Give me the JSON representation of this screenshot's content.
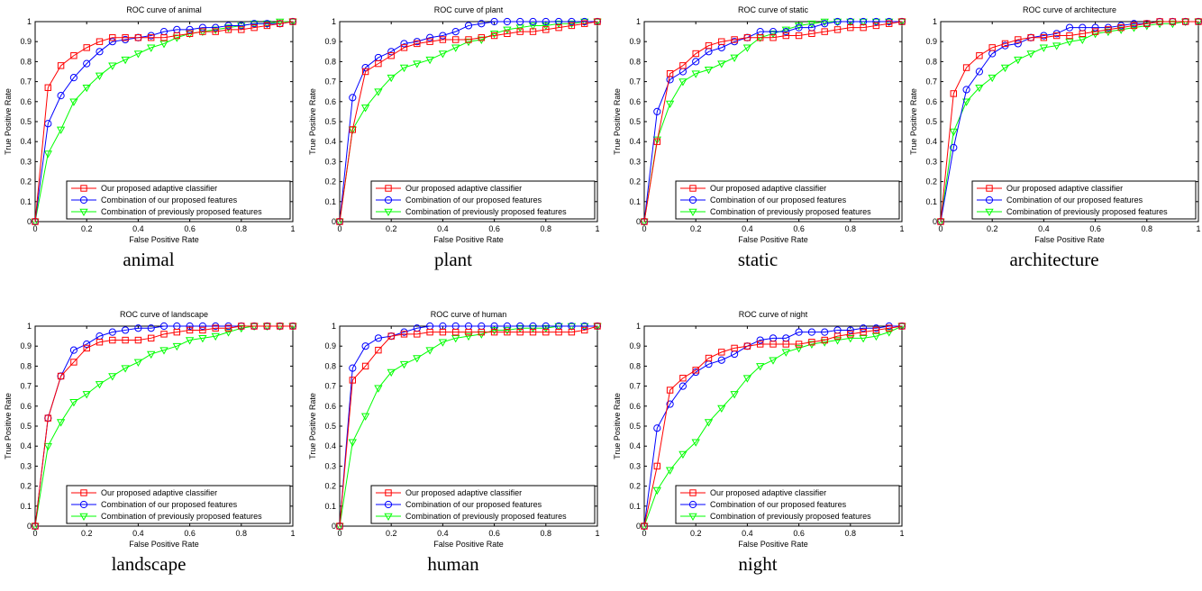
{
  "legend_labels": [
    "Our proposed adaptive classifier",
    "Combination of our proposed features",
    "Combination of previously proposed features"
  ],
  "series_colors": [
    "#ff0000",
    "#0000ff",
    "#00ff00"
  ],
  "series_markers": [
    "square",
    "circle",
    "triangle-down"
  ],
  "chart_data": [
    {
      "type": "line",
      "title": "ROC curve of animal",
      "caption": "animal",
      "xlabel": "False Positive Rate",
      "ylabel": "True Positive Rate",
      "xlim": [
        0,
        1
      ],
      "ylim": [
        0,
        1
      ],
      "xticks": [
        "0",
        "0.2",
        "0.4",
        "0.6",
        "0.8",
        "1"
      ],
      "yticks": [
        "0",
        "0.1",
        "0.2",
        "0.3",
        "0.4",
        "0.5",
        "0.6",
        "0.7",
        "0.8",
        "0.9",
        "1"
      ],
      "x": [
        0,
        0.05,
        0.1,
        0.15,
        0.2,
        0.25,
        0.3,
        0.35,
        0.4,
        0.45,
        0.5,
        0.55,
        0.6,
        0.65,
        0.7,
        0.75,
        0.8,
        0.85,
        0.9,
        0.95,
        1
      ],
      "series": [
        {
          "name": "Our proposed adaptive classifier",
          "values": [
            0,
            0.67,
            0.78,
            0.83,
            0.87,
            0.9,
            0.92,
            0.92,
            0.92,
            0.92,
            0.92,
            0.93,
            0.94,
            0.95,
            0.95,
            0.96,
            0.96,
            0.97,
            0.98,
            0.99,
            1
          ]
        },
        {
          "name": "Combination of our proposed features",
          "values": [
            0,
            0.49,
            0.63,
            0.72,
            0.79,
            0.85,
            0.9,
            0.91,
            0.92,
            0.93,
            0.95,
            0.96,
            0.96,
            0.97,
            0.97,
            0.98,
            0.98,
            0.99,
            0.99,
            0.99,
            1
          ]
        },
        {
          "name": "Combination of previously proposed features",
          "values": [
            0,
            0.34,
            0.46,
            0.6,
            0.67,
            0.73,
            0.78,
            0.81,
            0.84,
            0.87,
            0.89,
            0.92,
            0.94,
            0.95,
            0.96,
            0.97,
            0.98,
            0.99,
            0.99,
            1,
            1
          ]
        }
      ]
    },
    {
      "type": "line",
      "title": "ROC curve of plant",
      "caption": "plant",
      "xlabel": "False Positive Rate",
      "ylabel": "True Positive Rate",
      "xlim": [
        0,
        1
      ],
      "ylim": [
        0,
        1
      ],
      "xticks": [
        "0",
        "0.2",
        "0.4",
        "0.6",
        "0.8",
        "1"
      ],
      "yticks": [
        "0",
        "0.1",
        "0.2",
        "0.3",
        "0.4",
        "0.5",
        "0.6",
        "0.7",
        "0.8",
        "0.9",
        "1"
      ],
      "x": [
        0,
        0.05,
        0.1,
        0.15,
        0.2,
        0.25,
        0.3,
        0.35,
        0.4,
        0.45,
        0.5,
        0.55,
        0.6,
        0.65,
        0.7,
        0.75,
        0.8,
        0.85,
        0.9,
        0.95,
        1
      ],
      "series": [
        {
          "name": "Our proposed adaptive classifier",
          "values": [
            0,
            0.46,
            0.75,
            0.79,
            0.83,
            0.87,
            0.89,
            0.9,
            0.91,
            0.91,
            0.91,
            0.92,
            0.93,
            0.94,
            0.95,
            0.95,
            0.96,
            0.97,
            0.98,
            0.99,
            1
          ]
        },
        {
          "name": "Combination of our proposed features",
          "values": [
            0,
            0.62,
            0.77,
            0.82,
            0.85,
            0.89,
            0.9,
            0.92,
            0.93,
            0.95,
            0.98,
            0.99,
            1,
            1,
            1,
            1,
            1,
            1,
            1,
            1,
            1
          ]
        },
        {
          "name": "Combination of previously proposed features",
          "values": [
            0,
            0.46,
            0.57,
            0.65,
            0.72,
            0.77,
            0.79,
            0.81,
            0.84,
            0.87,
            0.9,
            0.91,
            0.94,
            0.96,
            0.97,
            0.98,
            0.98,
            0.99,
            0.99,
            1,
            1
          ]
        }
      ]
    },
    {
      "type": "line",
      "title": "ROC curve of static",
      "caption": "static",
      "xlabel": "False Positive Rate",
      "ylabel": "True Positive Rate",
      "xlim": [
        0,
        1
      ],
      "ylim": [
        0,
        1
      ],
      "xticks": [
        "0",
        "0.2",
        "0.4",
        "0.6",
        "0.8",
        "1"
      ],
      "yticks": [
        "0",
        "0.1",
        "0.2",
        "0.3",
        "0.4",
        "0.5",
        "0.6",
        "0.7",
        "0.8",
        "0.9",
        "1"
      ],
      "x": [
        0,
        0.05,
        0.1,
        0.15,
        0.2,
        0.25,
        0.3,
        0.35,
        0.4,
        0.45,
        0.5,
        0.55,
        0.6,
        0.65,
        0.7,
        0.75,
        0.8,
        0.85,
        0.9,
        0.95,
        1
      ],
      "series": [
        {
          "name": "Our proposed adaptive classifier",
          "values": [
            0,
            0.4,
            0.74,
            0.78,
            0.84,
            0.88,
            0.9,
            0.91,
            0.92,
            0.92,
            0.92,
            0.93,
            0.93,
            0.94,
            0.95,
            0.96,
            0.97,
            0.97,
            0.98,
            0.99,
            1
          ]
        },
        {
          "name": "Combination of our proposed features",
          "values": [
            0,
            0.55,
            0.71,
            0.75,
            0.8,
            0.85,
            0.87,
            0.9,
            0.92,
            0.95,
            0.95,
            0.95,
            0.97,
            0.97,
            0.99,
            1,
            1,
            1,
            1,
            1,
            1
          ]
        },
        {
          "name": "Combination of previously proposed features",
          "values": [
            0,
            0.41,
            0.59,
            0.7,
            0.74,
            0.76,
            0.79,
            0.82,
            0.87,
            0.92,
            0.94,
            0.96,
            0.98,
            0.99,
            1,
            1,
            1,
            1,
            1,
            1,
            1
          ]
        }
      ]
    },
    {
      "type": "line",
      "title": "ROC curve of architecture",
      "caption": "architecture",
      "xlabel": "False Positive Rate",
      "ylabel": "True Positive Rate",
      "xlim": [
        0,
        1
      ],
      "ylim": [
        0,
        1
      ],
      "xticks": [
        "0",
        "0.2",
        "0.4",
        "0.6",
        "0.8",
        "1"
      ],
      "yticks": [
        "0",
        "0.1",
        "0.2",
        "0.3",
        "0.4",
        "0.5",
        "0.6",
        "0.7",
        "0.8",
        "0.9",
        "1"
      ],
      "x": [
        0,
        0.05,
        0.1,
        0.15,
        0.2,
        0.25,
        0.3,
        0.35,
        0.4,
        0.45,
        0.5,
        0.55,
        0.6,
        0.65,
        0.7,
        0.75,
        0.8,
        0.85,
        0.9,
        0.95,
        1
      ],
      "series": [
        {
          "name": "Our proposed adaptive classifier",
          "values": [
            0,
            0.64,
            0.77,
            0.83,
            0.87,
            0.89,
            0.91,
            0.92,
            0.92,
            0.93,
            0.93,
            0.94,
            0.95,
            0.96,
            0.97,
            0.98,
            0.99,
            1,
            1,
            1,
            1
          ]
        },
        {
          "name": "Combination of our proposed features",
          "values": [
            0,
            0.37,
            0.66,
            0.75,
            0.84,
            0.88,
            0.89,
            0.92,
            0.93,
            0.94,
            0.97,
            0.97,
            0.97,
            0.97,
            0.98,
            0.99,
            0.99,
            1,
            1,
            1,
            1
          ]
        },
        {
          "name": "Combination of previously proposed features",
          "values": [
            0,
            0.45,
            0.6,
            0.67,
            0.72,
            0.77,
            0.81,
            0.84,
            0.87,
            0.88,
            0.9,
            0.91,
            0.94,
            0.95,
            0.96,
            0.97,
            0.98,
            0.99,
            0.99,
            1,
            1
          ]
        }
      ]
    },
    {
      "type": "line",
      "title": "ROC curve of landscape",
      "caption": "landscape",
      "xlabel": "False Positive Rate",
      "ylabel": "True Positive Rate",
      "xlim": [
        0,
        1
      ],
      "ylim": [
        0,
        1
      ],
      "xticks": [
        "0",
        "0.2",
        "0.4",
        "0.6",
        "0.8",
        "1"
      ],
      "yticks": [
        "0",
        "0.1",
        "0.2",
        "0.3",
        "0.4",
        "0.5",
        "0.6",
        "0.7",
        "0.8",
        "0.9",
        "1"
      ],
      "x": [
        0,
        0.05,
        0.1,
        0.15,
        0.2,
        0.25,
        0.3,
        0.35,
        0.4,
        0.45,
        0.5,
        0.55,
        0.6,
        0.65,
        0.7,
        0.75,
        0.8,
        0.85,
        0.9,
        0.95,
        1
      ],
      "series": [
        {
          "name": "Our proposed adaptive classifier",
          "values": [
            0,
            0.54,
            0.75,
            0.82,
            0.89,
            0.92,
            0.93,
            0.93,
            0.93,
            0.94,
            0.96,
            0.97,
            0.98,
            0.98,
            0.99,
            0.99,
            1,
            1,
            1,
            1,
            1
          ]
        },
        {
          "name": "Combination of our proposed features",
          "values": [
            0,
            0.54,
            0.75,
            0.88,
            0.91,
            0.95,
            0.97,
            0.98,
            0.99,
            0.99,
            1,
            1,
            1,
            1,
            1,
            1,
            1,
            1,
            1,
            1,
            1
          ]
        },
        {
          "name": "Combination of previously proposed features",
          "values": [
            0,
            0.4,
            0.52,
            0.62,
            0.66,
            0.71,
            0.75,
            0.79,
            0.82,
            0.86,
            0.88,
            0.9,
            0.93,
            0.94,
            0.95,
            0.97,
            0.99,
            1,
            1,
            1,
            1
          ]
        }
      ]
    },
    {
      "type": "line",
      "title": "ROC curve of human",
      "caption": "human",
      "xlabel": "False Positive Rate",
      "ylabel": "True Positive Rate",
      "xlim": [
        0,
        1
      ],
      "ylim": [
        0,
        1
      ],
      "xticks": [
        "0",
        "0.2",
        "0.4",
        "0.6",
        "0.8",
        "1"
      ],
      "yticks": [
        "0",
        "0.1",
        "0.2",
        "0.3",
        "0.4",
        "0.5",
        "0.6",
        "0.7",
        "0.8",
        "0.9",
        "1"
      ],
      "x": [
        0,
        0.05,
        0.1,
        0.15,
        0.2,
        0.25,
        0.3,
        0.35,
        0.4,
        0.45,
        0.5,
        0.55,
        0.6,
        0.65,
        0.7,
        0.75,
        0.8,
        0.85,
        0.9,
        0.95,
        1
      ],
      "series": [
        {
          "name": "Our proposed adaptive classifier",
          "values": [
            0,
            0.73,
            0.8,
            0.88,
            0.95,
            0.96,
            0.96,
            0.97,
            0.97,
            0.97,
            0.97,
            0.97,
            0.97,
            0.97,
            0.97,
            0.97,
            0.97,
            0.97,
            0.97,
            0.98,
            1
          ]
        },
        {
          "name": "Combination of our proposed features",
          "values": [
            0,
            0.79,
            0.9,
            0.94,
            0.95,
            0.97,
            0.99,
            1,
            1,
            1,
            1,
            1,
            1,
            1,
            1,
            1,
            1,
            1,
            1,
            1,
            1
          ]
        },
        {
          "name": "Combination of previously proposed features",
          "values": [
            0,
            0.42,
            0.55,
            0.69,
            0.77,
            0.81,
            0.84,
            0.88,
            0.92,
            0.94,
            0.95,
            0.96,
            0.98,
            0.98,
            0.99,
            0.99,
            0.99,
            1,
            1,
            1,
            1
          ]
        }
      ]
    },
    {
      "type": "line",
      "title": "ROC curve of night",
      "caption": "night",
      "xlabel": "False Positive Rate",
      "ylabel": "True Positive Rate",
      "xlim": [
        0,
        1
      ],
      "ylim": [
        0,
        1
      ],
      "xticks": [
        "0",
        "0.2",
        "0.4",
        "0.6",
        "0.8",
        "1"
      ],
      "yticks": [
        "0",
        "0.1",
        "0.2",
        "0.3",
        "0.4",
        "0.5",
        "0.6",
        "0.7",
        "0.8",
        "0.9",
        "1"
      ],
      "x": [
        0,
        0.05,
        0.1,
        0.15,
        0.2,
        0.25,
        0.3,
        0.35,
        0.4,
        0.45,
        0.5,
        0.55,
        0.6,
        0.65,
        0.7,
        0.75,
        0.8,
        0.85,
        0.9,
        0.95,
        1
      ],
      "series": [
        {
          "name": "Our proposed adaptive classifier",
          "values": [
            0,
            0.3,
            0.68,
            0.74,
            0.78,
            0.84,
            0.87,
            0.89,
            0.9,
            0.91,
            0.91,
            0.91,
            0.91,
            0.92,
            0.93,
            0.95,
            0.96,
            0.97,
            0.98,
            0.99,
            1
          ]
        },
        {
          "name": "Combination of our proposed features",
          "values": [
            0,
            0.49,
            0.61,
            0.7,
            0.77,
            0.81,
            0.83,
            0.86,
            0.9,
            0.93,
            0.94,
            0.94,
            0.97,
            0.97,
            0.97,
            0.98,
            0.98,
            0.99,
            0.99,
            1,
            1
          ]
        },
        {
          "name": "Combination of previously proposed features",
          "values": [
            0,
            0.18,
            0.28,
            0.36,
            0.42,
            0.52,
            0.59,
            0.66,
            0.74,
            0.8,
            0.83,
            0.87,
            0.89,
            0.91,
            0.92,
            0.93,
            0.94,
            0.94,
            0.95,
            0.97,
            1
          ]
        }
      ]
    }
  ]
}
